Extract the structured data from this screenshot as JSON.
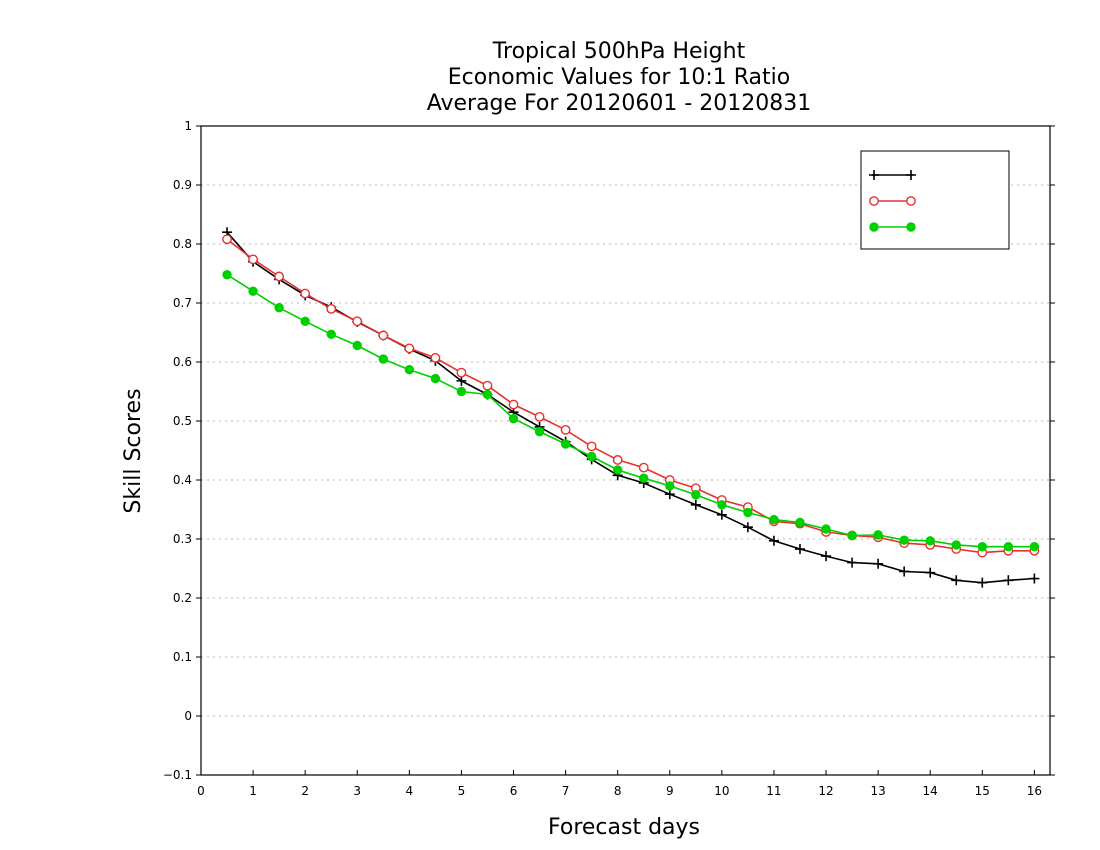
{
  "chart_data": {
    "type": "line",
    "title_lines": [
      "Tropical 500hPa Height",
      "Economic Values for 10:1 Ratio",
      "Average For 20120601 - 20120831"
    ],
    "xlabel": "Forecast days",
    "ylabel": "Skill Scores",
    "xlim": [
      0,
      16.3
    ],
    "ylim": [
      -0.1,
      1
    ],
    "x_ticks": [
      "0",
      "1",
      "2",
      "3",
      "4",
      "5",
      "6",
      "7",
      "8",
      "9",
      "10",
      "11",
      "12",
      "13",
      "14",
      "15",
      "16"
    ],
    "y_ticks": [
      "−0.1",
      "0",
      "0.1",
      "0.2",
      "0.3",
      "0.4",
      "0.5",
      "0.6",
      "0.7",
      "0.8",
      "0.9",
      "1"
    ],
    "grid": "horizontal-dotted",
    "legend_position": "top-right",
    "x": [
      0.5,
      1,
      1.5,
      2,
      2.5,
      3,
      3.5,
      4,
      4.5,
      5,
      5.5,
      6,
      6.5,
      7,
      7.5,
      8,
      8.5,
      9,
      9.5,
      10,
      10.5,
      11,
      11.5,
      12,
      12.5,
      13,
      13.5,
      14,
      14.5,
      15,
      15.5,
      16
    ],
    "series": [
      {
        "name": "",
        "color": "#000000",
        "marker": "plus",
        "values": [
          0.82,
          0.77,
          0.74,
          0.713,
          0.693,
          0.668,
          0.645,
          0.622,
          0.602,
          0.568,
          0.545,
          0.515,
          0.49,
          0.465,
          0.435,
          0.408,
          0.395,
          0.376,
          0.358,
          0.341,
          0.32,
          0.297,
          0.283,
          0.271,
          0.26,
          0.258,
          0.245,
          0.243,
          0.23,
          0.226,
          0.23,
          0.233
        ]
      },
      {
        "name": "",
        "color": "#e83030",
        "marker": "open-circle",
        "values": [
          0.808,
          0.774,
          0.745,
          0.716,
          0.69,
          0.669,
          0.645,
          0.623,
          0.607,
          0.582,
          0.56,
          0.528,
          0.507,
          0.485,
          0.457,
          0.434,
          0.421,
          0.4,
          0.386,
          0.366,
          0.354,
          0.33,
          0.326,
          0.312,
          0.306,
          0.303,
          0.293,
          0.29,
          0.283,
          0.277,
          0.28,
          0.28
        ]
      },
      {
        "name": "",
        "color": "#00d000",
        "marker": "filled-circle",
        "values": [
          0.748,
          0.72,
          0.692,
          0.669,
          0.647,
          0.628,
          0.605,
          0.587,
          0.572,
          0.55,
          0.545,
          0.504,
          0.482,
          0.461,
          0.44,
          0.417,
          0.403,
          0.39,
          0.375,
          0.358,
          0.345,
          0.333,
          0.328,
          0.317,
          0.306,
          0.307,
          0.298,
          0.297,
          0.29,
          0.287,
          0.287,
          0.287
        ]
      }
    ]
  }
}
